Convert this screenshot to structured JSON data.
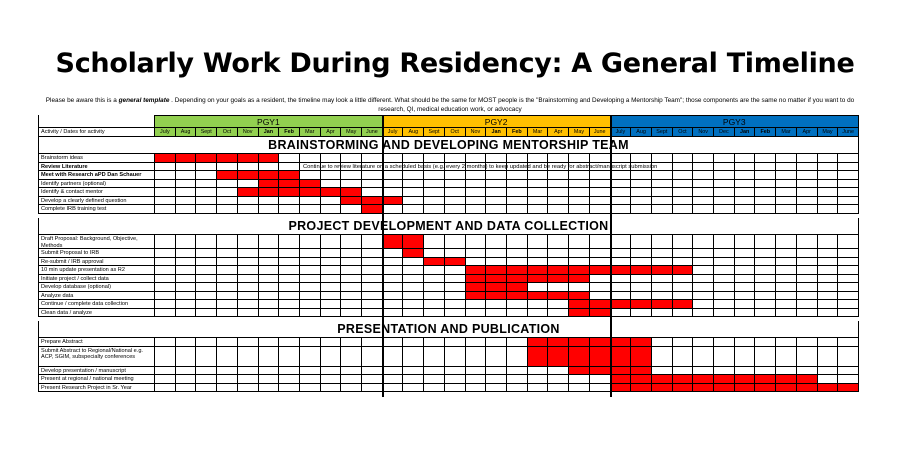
{
  "title": "Scholarly Work During Residency: A General Timeline",
  "note": {
    "prefix": "Please be aware this is a ",
    "emph": "general template",
    "suffix": " . Depending on your goals as a resident, the timeline may look a little different. What should be the same for MOST people is the \"Brainstorming and Developing a Mentorship Team\"; those components are the same no matter if you want to do research, QI, medical education work, or advocacy"
  },
  "header_label": "Activity / Dates for activity",
  "years": [
    {
      "label": "PGY1",
      "color": "#92d050"
    },
    {
      "label": "PGY2",
      "color": "#ffc000"
    },
    {
      "label": "PGY3",
      "color": "#0070c0"
    }
  ],
  "months": [
    [
      "July",
      "Aug",
      "Sept",
      "Oct",
      "Nov",
      "Jan",
      "Feb",
      "Mar",
      "Apr",
      "May",
      "June"
    ],
    [
      "July",
      "Aug",
      "Sept",
      "Oct",
      "Nov",
      "Jan",
      "Feb",
      "Mar",
      "Apr",
      "May",
      "June"
    ],
    [
      "July",
      "Aug",
      "Sept",
      "Oct",
      "Nov",
      "Dec",
      "Jan",
      "Feb",
      "Mar",
      "Apr",
      "May",
      "June"
    ]
  ],
  "bar_color": "#ff0000",
  "sections": [
    {
      "title": "BRAINSTORMING AND DEVELOPING MENTORSHIP TEAM",
      "rows": [
        {
          "label": "Brainstorm ideas",
          "bold": false,
          "bars": [
            [
              0,
              6
            ]
          ]
        },
        {
          "label": "Review Literature",
          "bold": true,
          "bars": [],
          "text": "Continue to review literature on a scheduled basis (e.g. every 2 months) to keep updated and be ready for abstract/manuscript submission"
        },
        {
          "label": "Meet with Research aPD Dan Schauer",
          "bold": true,
          "bars": [
            [
              3,
              7
            ]
          ]
        },
        {
          "label": "Identify partners (optional)",
          "bold": false,
          "bars": [
            [
              5,
              8
            ]
          ]
        },
        {
          "label": "Identify & contact mentor",
          "bold": false,
          "bars": [
            [
              4,
              10
            ]
          ]
        },
        {
          "label": "Develop a clearly defined question",
          "bold": false,
          "bars": [
            [
              9,
              12
            ]
          ]
        },
        {
          "label": "Complete IRB training test",
          "bold": false,
          "bars": [
            [
              10,
              11
            ]
          ]
        }
      ]
    },
    {
      "title": "PROJECT DEVELOPMENT AND DATA COLLECTION",
      "rows": [
        {
          "label": "Draft Proposal: Background, Objective, Methods",
          "bold": false,
          "tall": true,
          "bars": [
            [
              11,
              13
            ]
          ]
        },
        {
          "label": "Submit Proposal to IRB",
          "bold": false,
          "bars": [
            [
              12,
              13
            ]
          ]
        },
        {
          "label": "Re-submit / IRB approval",
          "bold": false,
          "bars": [
            [
              13,
              15
            ]
          ]
        },
        {
          "label": "10 min update presentation as R2",
          "bold": false,
          "bars": [
            [
              15,
              26
            ]
          ]
        },
        {
          "label": "Initiate project / collect data",
          "bold": false,
          "bars": [
            [
              15,
              21
            ]
          ]
        },
        {
          "label": "Develop database (optional)",
          "bold": false,
          "bars": [
            [
              15,
              18
            ]
          ]
        },
        {
          "label": "Analyze data",
          "bold": false,
          "bars": [
            [
              15,
              21
            ]
          ]
        },
        {
          "label": "Continue / complete data collection",
          "bold": false,
          "bars": [
            [
              20,
              26
            ]
          ]
        },
        {
          "label": "Clean data / analyze",
          "bold": false,
          "bars": [
            [
              20,
              22
            ]
          ]
        }
      ]
    },
    {
      "title": "PRESENTATION AND PUBLICATION",
      "rows": [
        {
          "label": "Prepare Abstract",
          "bold": false,
          "bars": [
            [
              18,
              24
            ]
          ]
        },
        {
          "label": "Submit Abstract to Regional/National e.g. ACP, SGIM, subspecialty conferences",
          "bold": false,
          "tall": true,
          "bars": [
            [
              18,
              24
            ]
          ]
        },
        {
          "label": "Develop presentation / manuscript",
          "bold": false,
          "bars": [
            [
              20,
              24
            ]
          ]
        },
        {
          "label": "Present at regional / national meeting",
          "bold": false,
          "bars": [
            [
              22,
              32
            ]
          ]
        },
        {
          "label": "Present Research Project in Sr. Year",
          "bold": false,
          "bars": [
            [
              22,
              34
            ]
          ]
        }
      ]
    }
  ]
}
